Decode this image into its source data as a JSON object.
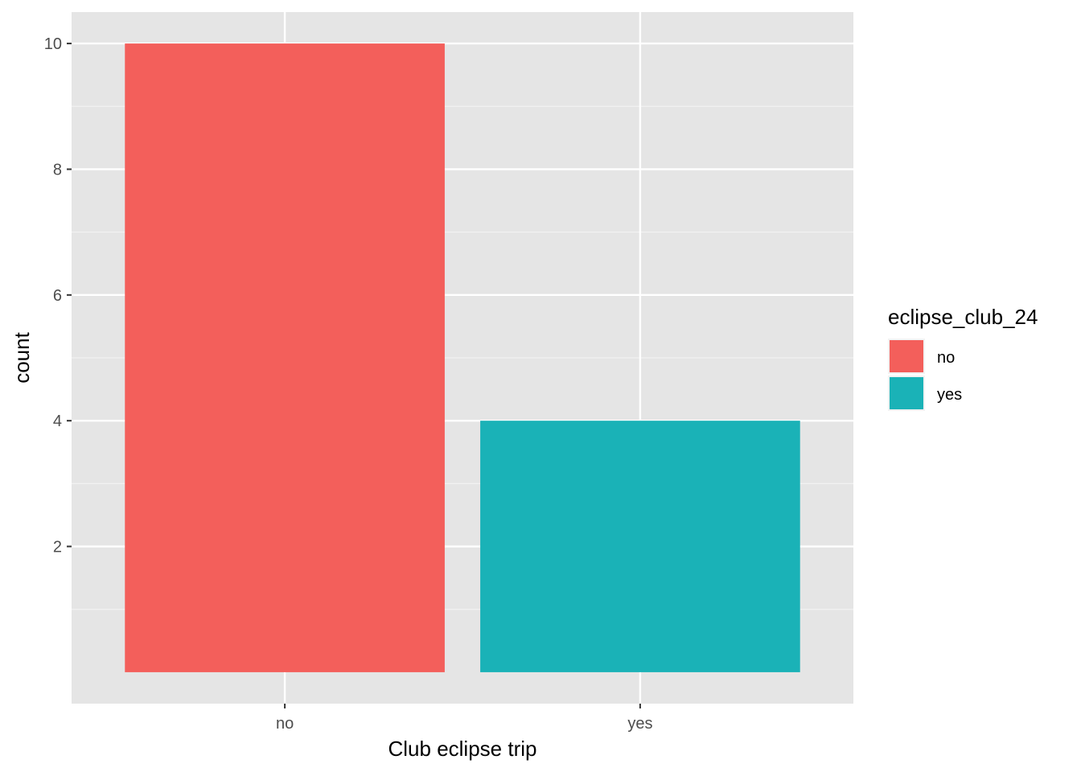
{
  "chart_data": {
    "type": "bar",
    "categories": [
      "no",
      "yes"
    ],
    "values": [
      10,
      4
    ],
    "colors": [
      "#F35F5B",
      "#1AB2B7"
    ],
    "xlabel": "Club eclipse trip",
    "ylabel": "count",
    "ylim": [
      0,
      10.5
    ],
    "yticks": [
      2,
      4,
      6,
      8,
      10
    ],
    "grid": true,
    "panel_background": "#E5E5E5",
    "legend": {
      "title": "eclipse_club_24",
      "position": "right",
      "items": [
        {
          "label": "no",
          "color": "#F35F5B"
        },
        {
          "label": "yes",
          "color": "#1AB2B7"
        }
      ]
    }
  }
}
